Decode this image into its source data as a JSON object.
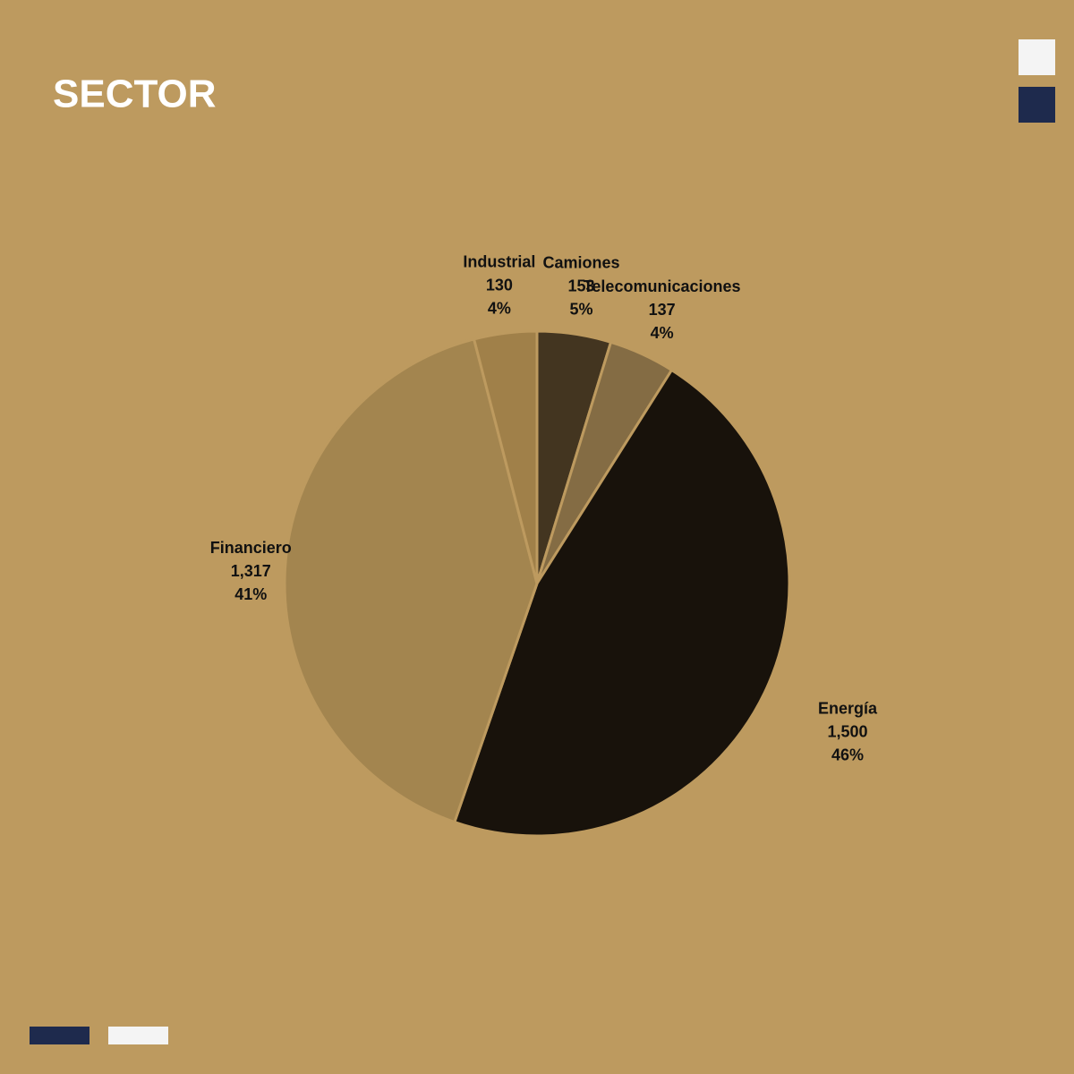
{
  "chart_data": {
    "type": "pie",
    "title": "SECTOR",
    "categories": [
      "Camiones",
      "Telecomunicaciones",
      "Energía",
      "Financiero",
      "Industrial"
    ],
    "values": [
      153,
      137,
      1500,
      1317,
      130
    ],
    "value_labels": [
      "153",
      "137",
      "1,500",
      "1,317",
      "130"
    ],
    "percent_values": [
      5,
      4,
      46,
      41,
      4
    ],
    "percent_labels": [
      "5%",
      "4%",
      "46%",
      "41%",
      "4%"
    ],
    "colors": [
      "#433520",
      "#846c44",
      "#18120b",
      "#a3854f",
      "#a08049"
    ]
  }
}
